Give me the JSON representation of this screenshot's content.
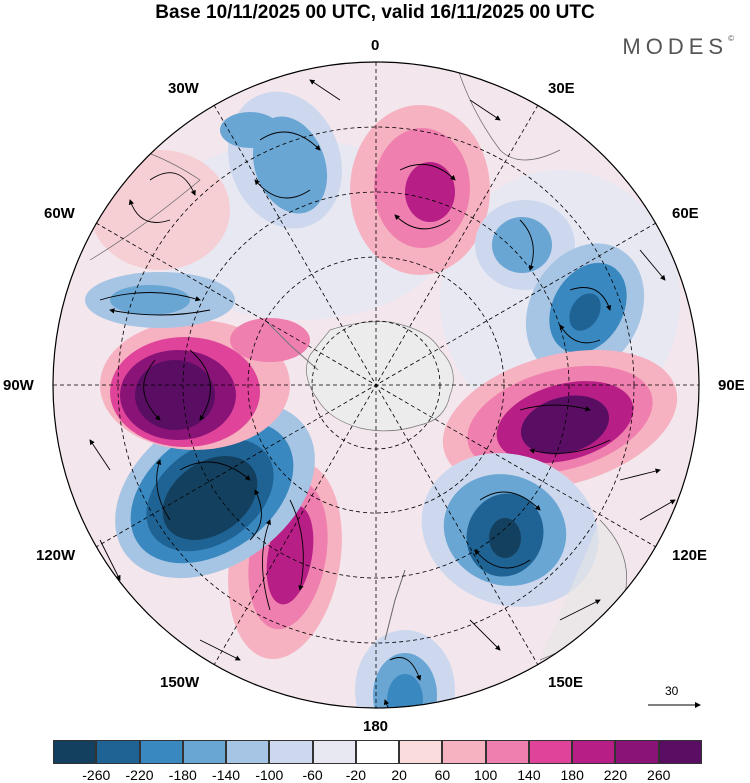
{
  "title": "Base 10/11/2025 00 UTC, valid 16/11/2025 00 UTC",
  "brand": "MODES",
  "brand_mark": "©",
  "longitude_labels": {
    "n0": "0",
    "e30": "30E",
    "e60": "60E",
    "e90": "90E",
    "e120": "120E",
    "e150": "150E",
    "s180": "180",
    "w150": "150W",
    "w120": "120W",
    "w90": "90W",
    "w60": "60W",
    "w30": "30W"
  },
  "vector_reference": "30",
  "colorbar": {
    "ticks": [
      "-260",
      "-220",
      "-180",
      "-140",
      "-100",
      "-60",
      "-20",
      "20",
      "60",
      "100",
      "140",
      "180",
      "220",
      "260"
    ],
    "colors": [
      "#14405f",
      "#1f6394",
      "#3a88c0",
      "#6aa6d3",
      "#a6c4e3",
      "#cdd8ee",
      "#e8e8f3",
      "#ffffff",
      "#fbdcdc",
      "#f6b2c0",
      "#ef7fae",
      "#e0449a",
      "#b71f86",
      "#8a1377",
      "#5a0e63"
    ]
  },
  "anomaly_centers": [
    {
      "name": "positive-north",
      "value": 200
    },
    {
      "name": "negative-northeast-1",
      "value": -140
    },
    {
      "name": "negative-northeast-2",
      "value": -180
    },
    {
      "name": "positive-east",
      "value": 260
    },
    {
      "name": "negative-southeast",
      "value": -240
    },
    {
      "name": "negative-south",
      "value": -160
    },
    {
      "name": "positive-southwest",
      "value": 220
    },
    {
      "name": "negative-west",
      "value": -260
    },
    {
      "name": "positive-west",
      "value": 260
    },
    {
      "name": "negative-northwest",
      "value": -140
    },
    {
      "name": "positive-northwest",
      "value": 80
    },
    {
      "name": "negative-north-west",
      "value": -120
    }
  ]
}
